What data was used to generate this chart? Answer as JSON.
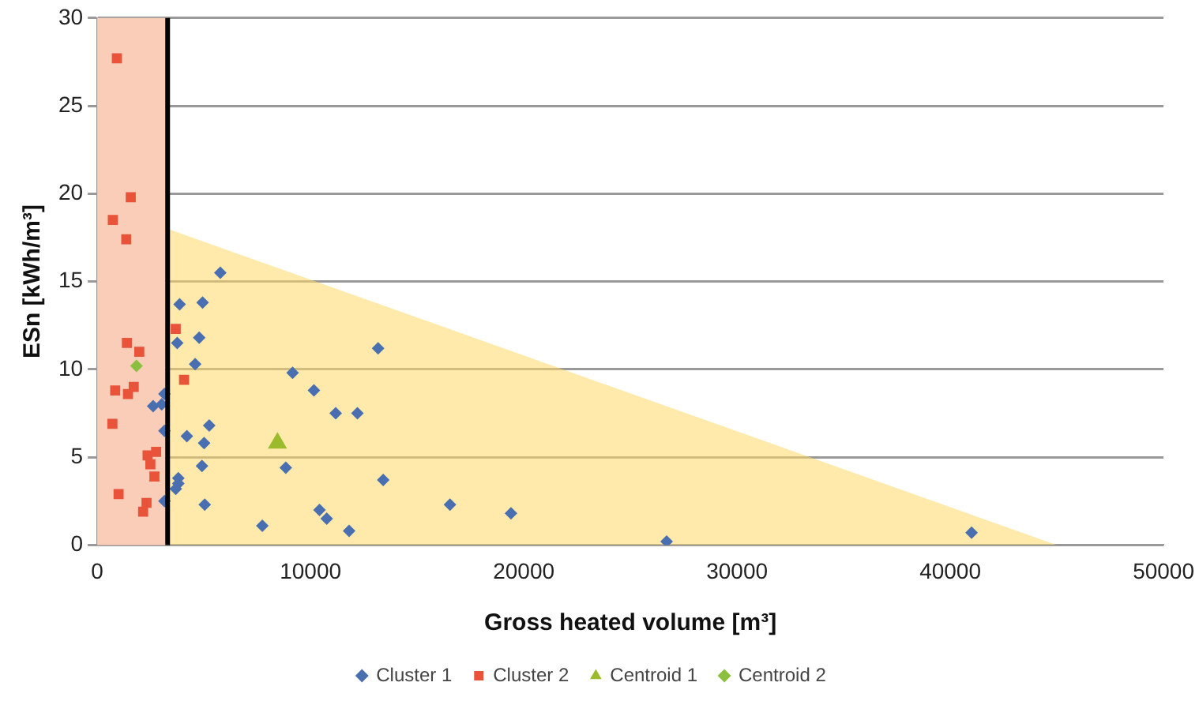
{
  "chart_data": {
    "type": "scatter",
    "xlabel": "Gross heated volume [m³]",
    "ylabel": "ESn [kWh/m³]",
    "xlim": [
      0,
      50000
    ],
    "xticks": [
      0,
      10000,
      20000,
      30000,
      40000,
      50000
    ],
    "ylim": [
      0,
      30
    ],
    "yticks": [
      0,
      5,
      10,
      15,
      20,
      25,
      30
    ],
    "grid": "y",
    "legend": "bottom",
    "bands": [
      {
        "axis": "x",
        "from": 0,
        "to": 3300,
        "color": "#f9cdb8"
      }
    ],
    "ref_lines": [
      {
        "axis": "x",
        "value": 3300,
        "color": "#000000"
      }
    ],
    "series": [
      {
        "name": "Cluster 1",
        "color": "#4a6fb0",
        "marker": "diamond",
        "x": [
          5770,
          3860,
          4940,
          4780,
          3750,
          4590,
          13170,
          9160,
          10160,
          11180,
          12200,
          5250,
          4200,
          5010,
          8840,
          4910,
          13410,
          3800,
          3800,
          3680,
          5040,
          16540,
          10420,
          10760,
          7740,
          11810,
          19400,
          26700,
          41000,
          3020,
          2620,
          3150,
          3150,
          3150
        ],
        "values": [
          15.5,
          13.7,
          13.8,
          11.8,
          11.5,
          10.3,
          11.2,
          9.8,
          8.8,
          7.5,
          7.5,
          6.8,
          6.2,
          5.8,
          4.4,
          4.5,
          3.7,
          3.8,
          3.5,
          3.2,
          2.3,
          2.3,
          2.0,
          1.5,
          1.1,
          0.8,
          1.8,
          0.2,
          0.7,
          8.0,
          7.9,
          8.6,
          6.5,
          2.5
        ]
      },
      {
        "name": "Cluster 2",
        "color": "#e8533a",
        "marker": "square",
        "x": [
          920,
          1570,
          730,
          1360,
          1390,
          1970,
          3680,
          4070,
          840,
          1710,
          1440,
          710,
          2360,
          2760,
          2490,
          2680,
          1000,
          2310,
          2150
        ],
        "values": [
          27.7,
          19.8,
          18.5,
          17.4,
          11.5,
          11.0,
          12.3,
          9.4,
          8.8,
          9.0,
          8.6,
          6.9,
          5.1,
          5.3,
          4.6,
          3.9,
          2.9,
          2.4,
          1.9
        ]
      },
      {
        "name": "Centroid 1",
        "color": "#9bbb2d",
        "marker": "triangle",
        "x": [
          8450
        ],
        "values": [
          5.8
        ]
      },
      {
        "name": "Centroid 2",
        "color": "#8dbf3e",
        "marker": "diamond",
        "x": [
          1840
        ],
        "values": [
          10.2
        ]
      },
      {
        "type": "area",
        "color": "#ffd966",
        "x": [
          3300,
          45000
        ],
        "values": [
          18,
          0
        ]
      }
    ]
  }
}
